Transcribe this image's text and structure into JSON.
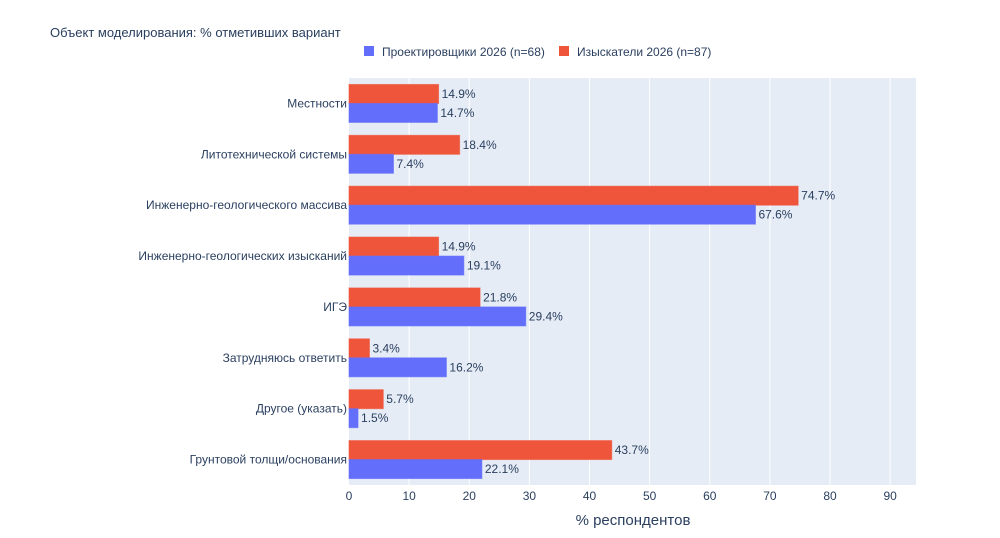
{
  "chart_data": {
    "type": "bar",
    "orientation": "horizontal",
    "title": "Объект моделирования: % отметивших вариант",
    "xlabel": "% респондентов",
    "ylabel": "",
    "xlim": [
      0,
      94.3
    ],
    "xticks": [
      0,
      10,
      20,
      30,
      40,
      50,
      60,
      70,
      80,
      90
    ],
    "grid": true,
    "legend_position": "top",
    "categories": [
      "Местности",
      "Литотехнической системы",
      "Инженерно-геологического массива",
      "Инженерно-геологических изысканий",
      "ИГЭ",
      "Затрудняюсь ответить",
      "Другое (указать)",
      "Грунтовой толщи/основания"
    ],
    "series": [
      {
        "name": "Проектировщики 2026 (n=68)",
        "color": "#636efa",
        "values": [
          14.7,
          7.4,
          67.6,
          19.1,
          29.4,
          16.2,
          1.5,
          22.1
        ],
        "labels": [
          "14.7%",
          "7.4%",
          "67.6%",
          "19.1%",
          "29.4%",
          "16.2%",
          "1.5%",
          "22.1%"
        ]
      },
      {
        "name": "Изыскатели 2026 (n=87)",
        "color": "#ef553b",
        "values": [
          14.9,
          18.4,
          74.7,
          14.9,
          21.8,
          3.4,
          5.7,
          43.7
        ],
        "labels": [
          "14.9%",
          "18.4%",
          "74.7%",
          "14.9%",
          "21.8%",
          "3.4%",
          "5.7%",
          "43.7%"
        ]
      }
    ]
  }
}
